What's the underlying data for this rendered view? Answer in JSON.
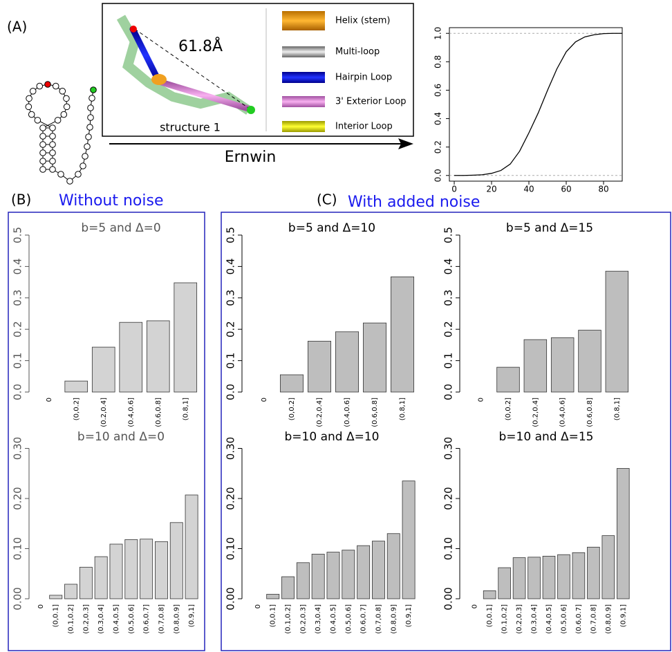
{
  "panel_a": {
    "label": "(A)",
    "distance": "61.8Å",
    "structure": "structure 1",
    "method": "Ernwin",
    "legend": [
      "Helix (stem)",
      "Multi-loop",
      "Hairpin Loop",
      "3' Exterior Loop",
      "Interior Loop"
    ]
  },
  "panel_b": {
    "label": "(B)",
    "title": "Without noise"
  },
  "panel_c": {
    "label": "(C)",
    "title": "With added noise"
  },
  "chart_data": [
    {
      "type": "line",
      "x": [
        0,
        5,
        10,
        15,
        20,
        25,
        30,
        35,
        40,
        45,
        50,
        55,
        60,
        65,
        70,
        75,
        80,
        85,
        90
      ],
      "values": [
        0,
        0,
        0.002,
        0.005,
        0.015,
        0.035,
        0.08,
        0.17,
        0.3,
        0.44,
        0.6,
        0.75,
        0.87,
        0.94,
        0.975,
        0.99,
        0.998,
        1,
        1
      ],
      "color": "#000000",
      "xlim": [
        -2.6,
        90
      ],
      "xticks": [
        0,
        20,
        40,
        60,
        80
      ],
      "ylim": [
        -0.04,
        1.04
      ],
      "yticks": [
        {
          "value": 0,
          "label": "0.0"
        },
        0.2,
        0.4,
        0.6,
        0.8,
        {
          "value": 1,
          "label": "1.0"
        }
      ],
      "reference_lines": [
        0,
        1
      ]
    },
    {
      "type": "bar",
      "title": "b=5 and Δ=0",
      "categories": [
        "0",
        "(0,0.2]",
        "(0.2,0.4]",
        "(0.4,0.6]",
        "(0.6,0.8]",
        "(0.8,1]"
      ],
      "values": [
        0,
        0.035,
        0.143,
        0.222,
        0.227,
        0.348
      ],
      "color": "#d3d3d3",
      "ylim": [
        0,
        0.5
      ],
      "yticks": [
        {
          "value": 0,
          "label": "0.0"
        },
        0.1,
        0.2,
        0.3,
        0.4,
        0.5
      ]
    },
    {
      "type": "bar",
      "title": "b=10 and Δ=0",
      "categories": [
        "0",
        "(0,0.1]",
        "(0.1,0.2]",
        "(0.2,0.3]",
        "(0.3,0.4]",
        "(0.4,0.5]",
        "(0.5,0.6]",
        "(0.6,0.7]",
        "(0.7,0.8]",
        "(0.8,0.9]",
        "(0.9,1]"
      ],
      "values": [
        0,
        0.007,
        0.029,
        0.063,
        0.084,
        0.109,
        0.118,
        0.119,
        0.114,
        0.152,
        0.207
      ],
      "color": "#d3d3d3",
      "ylim": [
        0,
        0.3
      ],
      "yticks": [
        {
          "value": 0,
          "label": "0.00"
        },
        {
          "value": 0.1,
          "label": "0.10"
        },
        {
          "value": 0.2,
          "label": "0.20"
        },
        {
          "value": 0.3,
          "label": "0.30"
        }
      ]
    },
    {
      "type": "bar",
      "title": "b=5 and Δ=10",
      "categories": [
        "0",
        "(0,0.2]",
        "(0.2,0.4]",
        "(0.4,0.6]",
        "(0.6,0.8]",
        "(0.8,1]"
      ],
      "values": [
        0,
        0.055,
        0.162,
        0.192,
        0.22,
        0.367
      ],
      "color": "#bebebe",
      "ylim": [
        0,
        0.5
      ],
      "yticks": [
        {
          "value": 0,
          "label": "0.0"
        },
        0.1,
        0.2,
        0.3,
        0.4,
        0.5
      ]
    },
    {
      "type": "bar",
      "title": "b=5 and Δ=15",
      "categories": [
        "0",
        "(0,0.2]",
        "(0.2,0.4]",
        "(0.4,0.6]",
        "(0.6,0.8]",
        "(0.8,1]"
      ],
      "values": [
        0,
        0.079,
        0.167,
        0.173,
        0.197,
        0.385
      ],
      "color": "#bebebe",
      "ylim": [
        0,
        0.5
      ],
      "yticks": [
        {
          "value": 0,
          "label": "0.0"
        },
        0.1,
        0.2,
        0.3,
        0.4,
        0.5
      ]
    },
    {
      "type": "bar",
      "title": "b=10 and Δ=10",
      "categories": [
        "0",
        "(0,0.1]",
        "(0.1,0.2]",
        "(0.2,0.3]",
        "(0.3,0.4]",
        "(0.4,0.5]",
        "(0.5,0.6]",
        "(0.6,0.7]",
        "(0.7,0.8]",
        "(0.8,0.9]",
        "(0.9,1]"
      ],
      "values": [
        0,
        0.009,
        0.044,
        0.072,
        0.089,
        0.093,
        0.097,
        0.106,
        0.115,
        0.13,
        0.235
      ],
      "color": "#bebebe",
      "ylim": [
        0,
        0.3
      ],
      "yticks": [
        {
          "value": 0,
          "label": "0.00"
        },
        {
          "value": 0.1,
          "label": "0.10"
        },
        {
          "value": 0.2,
          "label": "0.20"
        },
        {
          "value": 0.3,
          "label": "0.30"
        }
      ]
    },
    {
      "type": "bar",
      "title": "b=10 and Δ=15",
      "categories": [
        "0",
        "(0,0.1]",
        "(0.1,0.2]",
        "(0.2,0.3]",
        "(0.3,0.4]",
        "(0.4,0.5]",
        "(0.5,0.6]",
        "(0.6,0.7]",
        "(0.7,0.8]",
        "(0.8,0.9]",
        "(0.9,1]"
      ],
      "values": [
        0,
        0.016,
        0.062,
        0.082,
        0.083,
        0.085,
        0.088,
        0.092,
        0.103,
        0.126,
        0.26
      ],
      "color": "#bebebe",
      "ylim": [
        0,
        0.3
      ],
      "yticks": [
        {
          "value": 0,
          "label": "0.00"
        },
        {
          "value": 0.1,
          "label": "0.10"
        },
        {
          "value": 0.2,
          "label": "0.20"
        },
        {
          "value": 0.3,
          "label": "0.30"
        }
      ]
    }
  ]
}
